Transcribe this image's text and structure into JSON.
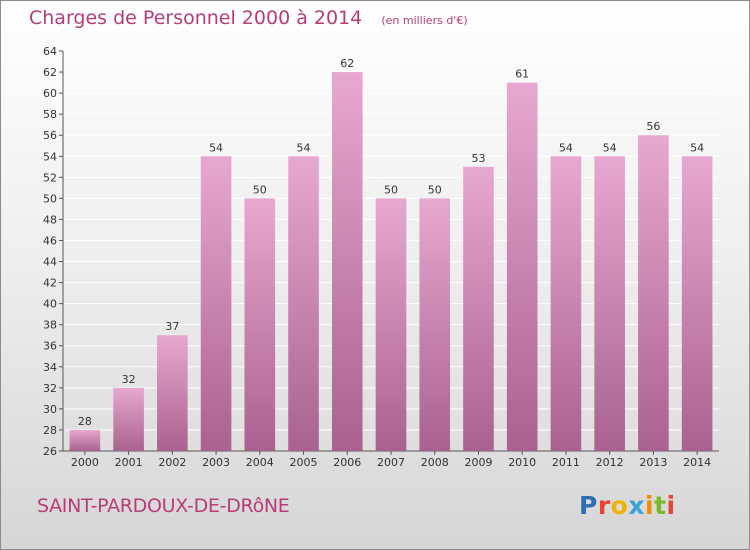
{
  "title": "Charges de Personnel 2000 à 2014",
  "subtitle": "(en milliers d'€)",
  "commune": "SAINT-PARDOUX-DE-DRôNE",
  "logo": {
    "text": "Proxiti",
    "letter_colors": [
      "#2e6db4",
      "#e8432e",
      "#f0b400",
      "#3ba3d8",
      "#f08c00",
      "#7ab92e",
      "#e8432e"
    ]
  },
  "colors": {
    "bar_light": "#e7a8cf",
    "bar_dark": "#a9628f",
    "text_accent": "#b83c78"
  },
  "chart_data": {
    "type": "bar",
    "categories": [
      "2000",
      "2001",
      "2002",
      "2003",
      "2004",
      "2005",
      "2006",
      "2007",
      "2008",
      "2009",
      "2010",
      "2011",
      "2012",
      "2013",
      "2014"
    ],
    "values": [
      28,
      32,
      37,
      54,
      50,
      54,
      62,
      50,
      50,
      53,
      61,
      54,
      54,
      56,
      54
    ],
    "title": "Charges de Personnel 2000 à 2014",
    "xlabel": "",
    "ylabel": "",
    "ylim": [
      26,
      64
    ],
    "yticks": [
      26,
      28,
      30,
      32,
      34,
      36,
      38,
      40,
      42,
      44,
      46,
      48,
      50,
      52,
      54,
      56,
      58,
      60,
      62,
      64
    ],
    "grid": true,
    "legend": "none"
  }
}
